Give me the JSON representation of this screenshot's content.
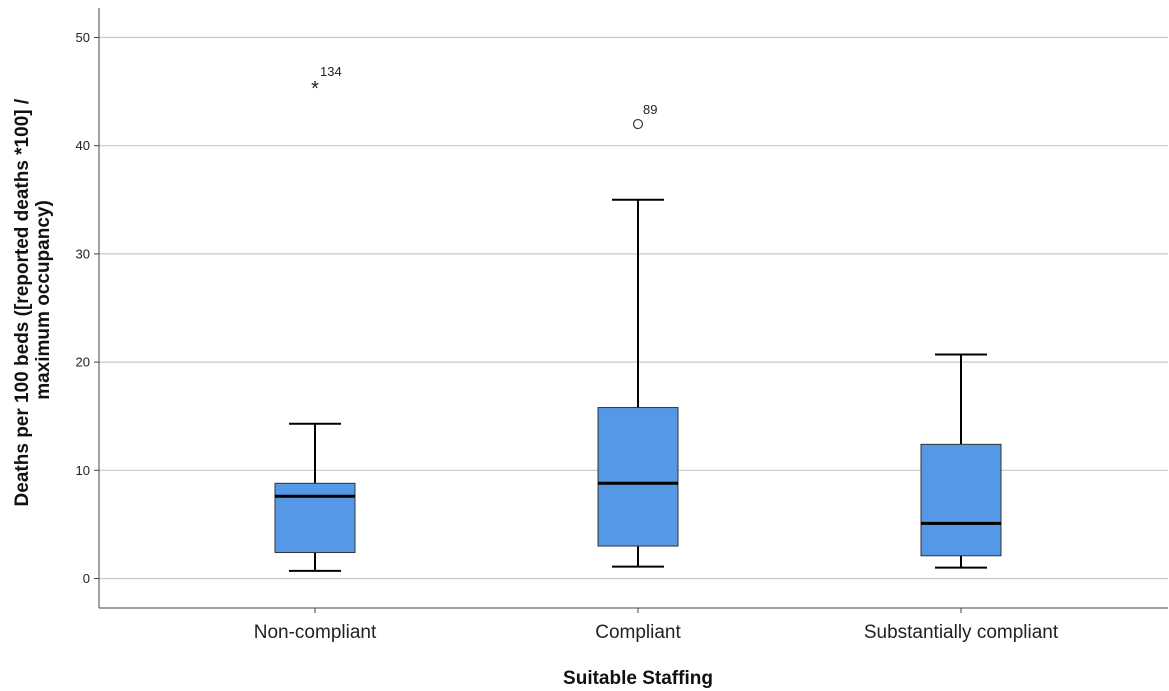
{
  "chart_data": {
    "type": "boxplot",
    "xlabel": "Suitable Staffing",
    "ylabel_lines": [
      "Deaths per 100 beds ([reported deaths *100] /",
      "maximum occupancy)"
    ],
    "ylim": [
      -2.8,
      53
    ],
    "yticks": [
      0,
      10,
      20,
      30,
      40,
      50
    ],
    "grid": "horizontal",
    "box_color": "#5599e6",
    "categories": [
      "Non-compliant",
      "Compliant",
      "Substantially compliant"
    ],
    "boxes": [
      {
        "category": "Non-compliant",
        "min": 0.7,
        "q1": 2.4,
        "median": 7.6,
        "q3": 8.8,
        "max": 14.3
      },
      {
        "category": "Compliant",
        "min": 1.1,
        "q1": 3.0,
        "median": 8.8,
        "q3": 15.8,
        "max": 35.0
      },
      {
        "category": "Substantially compliant",
        "min": 1.0,
        "q1": 2.1,
        "median": 5.1,
        "q3": 12.4,
        "max": 20.7
      }
    ],
    "outliers": [
      {
        "category": "Non-compliant",
        "value": 45.5,
        "label": "134",
        "marker": "*"
      },
      {
        "category": "Compliant",
        "value": 42.0,
        "label": "89",
        "marker": "o"
      }
    ]
  }
}
